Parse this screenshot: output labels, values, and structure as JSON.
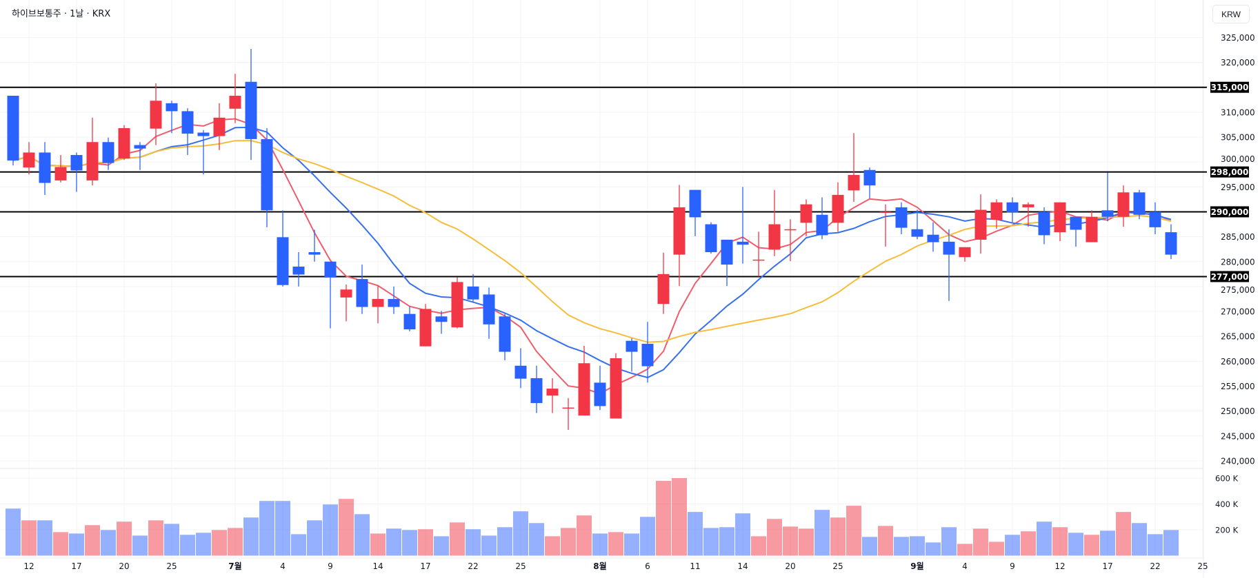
{
  "header": {
    "title": "하이브보통주 · 1날 · KRX",
    "currency_button": "KRW"
  },
  "colors": {
    "up": "#f23645",
    "down": "#2962ff",
    "ma5": "#ef5d6b",
    "ma10": "#3470f0",
    "ma20": "#f5bd3a",
    "level": "#000000"
  },
  "chart_data": {
    "type": "candlestick",
    "title": "하이브보통주 · 1날 · KRX",
    "ylabel": "KRW",
    "ylim": [
      240000,
      325000
    ],
    "y_ticks": [
      325000,
      320000,
      315000,
      310000,
      305000,
      300000,
      295000,
      290000,
      285000,
      280000,
      275000,
      270000,
      265000,
      260000,
      255000,
      250000,
      245000,
      240000
    ],
    "y_tick_labels": [
      "325,000",
      "320,000",
      "315,000",
      "310,000",
      "305,000",
      "300,000",
      "295,000",
      "290,000",
      "285,000",
      "280,000",
      "275,000",
      "270,000",
      "265,000",
      "260,000",
      "255,000",
      "250,000",
      "245,000",
      "240,000"
    ],
    "levels": [
      {
        "value": 315000,
        "label": "315,000"
      },
      {
        "value": 298000,
        "label": "298,000"
      },
      {
        "value": 290000,
        "label": "290,000"
      },
      {
        "value": 277000,
        "label": "277,000"
      }
    ],
    "moving_averages": [
      {
        "name": "MA5",
        "period": 5
      },
      {
        "name": "MA10",
        "period": 10
      },
      {
        "name": "MA20",
        "period": 20
      }
    ],
    "x_labels": [
      {
        "index": 1,
        "label": "12"
      },
      {
        "index": 4,
        "label": "17"
      },
      {
        "index": 7,
        "label": "20"
      },
      {
        "index": 10,
        "label": "25"
      },
      {
        "index": 14,
        "label": "7월",
        "bold": true
      },
      {
        "index": 17,
        "label": "4"
      },
      {
        "index": 20,
        "label": "9"
      },
      {
        "index": 23,
        "label": "14"
      },
      {
        "index": 26,
        "label": "17"
      },
      {
        "index": 29,
        "label": "22"
      },
      {
        "index": 32,
        "label": "25"
      },
      {
        "index": 37,
        "label": "8월",
        "bold": true
      },
      {
        "index": 40,
        "label": "6"
      },
      {
        "index": 43,
        "label": "11"
      },
      {
        "index": 46,
        "label": "14"
      },
      {
        "index": 49,
        "label": "20"
      },
      {
        "index": 52,
        "label": "25"
      },
      {
        "index": 57,
        "label": "9월",
        "bold": true
      },
      {
        "index": 60,
        "label": "4"
      },
      {
        "index": 63,
        "label": "9"
      },
      {
        "index": 66,
        "label": "12"
      },
      {
        "index": 69,
        "label": "17"
      },
      {
        "index": 72,
        "label": "22"
      },
      {
        "index": 75,
        "label": "25"
      }
    ],
    "volume_ticks": [
      {
        "value": 600000,
        "label": "600 K"
      },
      {
        "value": 400000,
        "label": "400 K"
      },
      {
        "value": 200000,
        "label": "200 K"
      }
    ],
    "ohlc": [
      [
        313300,
        313300,
        299300,
        300300
      ],
      [
        298900,
        304000,
        297500,
        301900
      ],
      [
        301900,
        304000,
        293400,
        295800
      ],
      [
        296300,
        301400,
        295900,
        299000
      ],
      [
        301400,
        301900,
        294000,
        298300
      ],
      [
        296300,
        308900,
        295300,
        304000
      ],
      [
        304000,
        304900,
        298400,
        299800
      ],
      [
        300700,
        307400,
        300400,
        306800
      ],
      [
        303400,
        304000,
        298400,
        302700
      ],
      [
        306700,
        315800,
        303400,
        312300
      ],
      [
        311800,
        312300,
        305800,
        310200
      ],
      [
        310200,
        310800,
        301400,
        305700
      ],
      [
        305900,
        306400,
        297500,
        305200
      ],
      [
        305200,
        311800,
        302400,
        308900
      ],
      [
        310700,
        317700,
        307800,
        313300
      ],
      [
        316100,
        322700,
        300400,
        304600
      ],
      [
        304600,
        306800,
        286900,
        290300
      ],
      [
        284900,
        290300,
        275000,
        275300
      ],
      [
        279000,
        281900,
        275000,
        277400
      ],
      [
        281900,
        286400,
        280000,
        281400
      ],
      [
        280000,
        280000,
        266600,
        276800
      ],
      [
        272800,
        275400,
        268000,
        274400
      ],
      [
        276500,
        279400,
        269500,
        270900
      ],
      [
        270900,
        275100,
        267600,
        272500
      ],
      [
        272500,
        275000,
        269500,
        270900
      ],
      [
        269500,
        271000,
        266000,
        266400
      ],
      [
        263000,
        271500,
        263000,
        270500
      ],
      [
        269000,
        270100,
        265500,
        267900
      ],
      [
        266800,
        276900,
        266600,
        275900
      ],
      [
        275000,
        277500,
        272000,
        272400
      ],
      [
        273400,
        274800,
        264500,
        267400
      ],
      [
        269000,
        269500,
        260200,
        261900
      ],
      [
        259100,
        262600,
        254600,
        256500
      ],
      [
        256600,
        259100,
        249600,
        251600
      ],
      [
        253100,
        256600,
        249600,
        254500
      ],
      [
        250600,
        252600,
        246200,
        250700
      ],
      [
        249100,
        263100,
        249100,
        259600
      ],
      [
        255700,
        259100,
        250200,
        251000
      ],
      [
        248500,
        261600,
        248500,
        260600
      ],
      [
        264100,
        264600,
        257900,
        261900
      ],
      [
        263500,
        267900,
        255700,
        259000
      ],
      [
        271500,
        281800,
        269500,
        277500
      ],
      [
        281400,
        295400,
        275100,
        290900
      ],
      [
        294400,
        294400,
        285100,
        288900
      ],
      [
        287500,
        287900,
        281600,
        281900
      ],
      [
        284400,
        284400,
        275100,
        279400
      ],
      [
        284000,
        295000,
        279600,
        283400
      ],
      [
        280300,
        286000,
        277000,
        280400
      ],
      [
        282400,
        294400,
        281100,
        287500
      ],
      [
        286400,
        288500,
        280100,
        286500
      ],
      [
        287800,
        292500,
        285100,
        291500
      ],
      [
        289400,
        292900,
        284500,
        285300
      ],
      [
        287800,
        295900,
        286000,
        293400
      ],
      [
        294300,
        305800,
        292000,
        297400
      ],
      [
        298400,
        298900,
        292700,
        295300
      ],
      [
        289900,
        291500,
        283000,
        290000
      ],
      [
        290900,
        291900,
        285500,
        286800
      ],
      [
        286500,
        290400,
        284500,
        285000
      ],
      [
        285400,
        287900,
        282000,
        283900
      ],
      [
        284000,
        286500,
        272100,
        281400
      ],
      [
        280900,
        282900,
        280000,
        282900
      ],
      [
        284400,
        293500,
        281600,
        290400
      ],
      [
        288400,
        292500,
        286600,
        291900
      ],
      [
        291900,
        292900,
        287900,
        289900
      ],
      [
        290900,
        291900,
        287000,
        291500
      ],
      [
        290000,
        290900,
        283500,
        285300
      ],
      [
        285900,
        291900,
        284100,
        291900
      ],
      [
        289000,
        289000,
        283000,
        286400
      ],
      [
        283900,
        290300,
        283900,
        289000
      ],
      [
        290300,
        297900,
        288100,
        289000
      ],
      [
        289000,
        295300,
        287000,
        293900
      ],
      [
        293900,
        294400,
        288500,
        289400
      ],
      [
        290000,
        291900,
        285500,
        286900
      ],
      [
        285900,
        287500,
        280500,
        281400
      ]
    ],
    "volume": [
      364000,
      273000,
      273000,
      182000,
      171000,
      236000,
      198000,
      263000,
      155000,
      273000,
      246000,
      161000,
      177000,
      198000,
      214000,
      295000,
      423000,
      423000,
      166000,
      273000,
      396000,
      439000,
      321000,
      171000,
      209000,
      198000,
      204000,
      150000,
      257000,
      204000,
      155000,
      220000,
      343000,
      252000,
      150000,
      214000,
      311000,
      171000,
      182000,
      171000,
      300000,
      579000,
      600000,
      338000,
      214000,
      220000,
      327000,
      150000,
      284000,
      225000,
      209000,
      354000,
      295000,
      386000,
      145000,
      230000,
      145000,
      150000,
      102000,
      220000,
      91000,
      209000,
      107000,
      161000,
      188000,
      263000,
      220000,
      177000,
      161000,
      193000,
      338000,
      252000,
      166000,
      198000
    ]
  }
}
